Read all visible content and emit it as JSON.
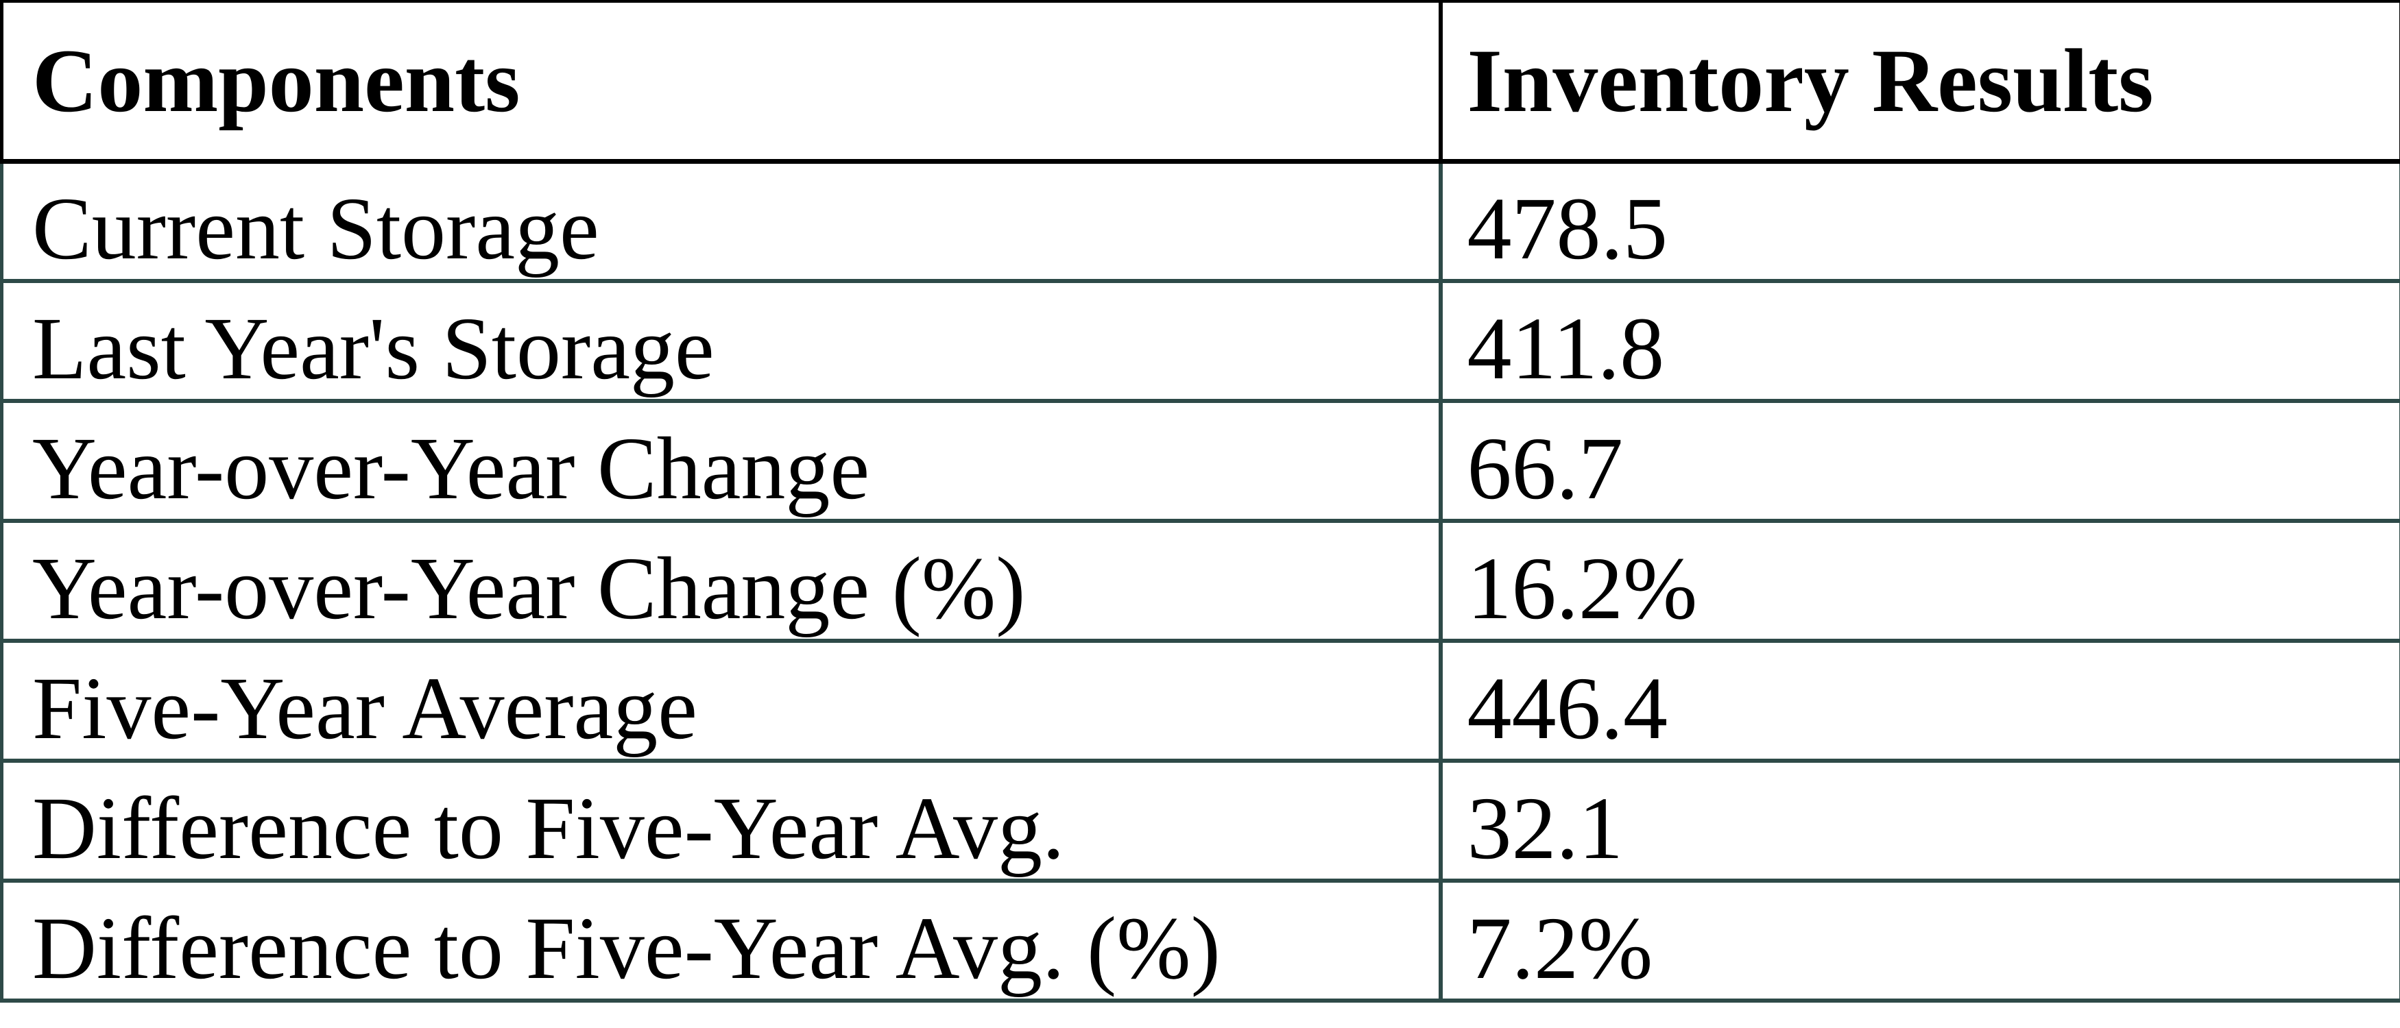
{
  "table": {
    "header": {
      "components": "Components",
      "results": "Inventory Results"
    },
    "rows": [
      {
        "label": "Current Storage",
        "value": "478.5"
      },
      {
        "label": "Last Year's Storage",
        "value": "411.8"
      },
      {
        "label": "Year-over-Year Change",
        "value": "66.7"
      },
      {
        "label": "Year-over-Year Change (%)",
        "value": "16.2%"
      },
      {
        "label": "Five-Year Average",
        "value": "446.4"
      },
      {
        "label": "Difference to Five-Year Avg.",
        "value": "32.1"
      },
      {
        "label": "Difference to Five-Year Avg. (%)",
        "value": "7.2%"
      }
    ],
    "colors": {
      "header_border": "#000000",
      "grid_border": "#2E4A48",
      "text": "#000000",
      "background": "#ffffff"
    }
  },
  "chart_data": {
    "type": "table",
    "title": "Inventory Results",
    "columns": [
      "Components",
      "Inventory Results"
    ],
    "rows": [
      [
        "Current Storage",
        "478.5"
      ],
      [
        "Last Year's Storage",
        "411.8"
      ],
      [
        "Year-over-Year Change",
        "66.7"
      ],
      [
        "Year-over-Year Change (%)",
        "16.2%"
      ],
      [
        "Five-Year Average",
        "446.4"
      ],
      [
        "Difference to Five-Year Avg.",
        "32.1"
      ],
      [
        "Difference to Five-Year Avg. (%)",
        "7.2%"
      ]
    ],
    "values": {
      "current_storage": 478.5,
      "last_year_storage": 411.8,
      "yoy_change": 66.7,
      "yoy_change_pct": 16.2,
      "five_year_average": 446.4,
      "difference_to_five_year_avg": 32.1,
      "difference_to_five_year_avg_pct": 7.2
    }
  }
}
